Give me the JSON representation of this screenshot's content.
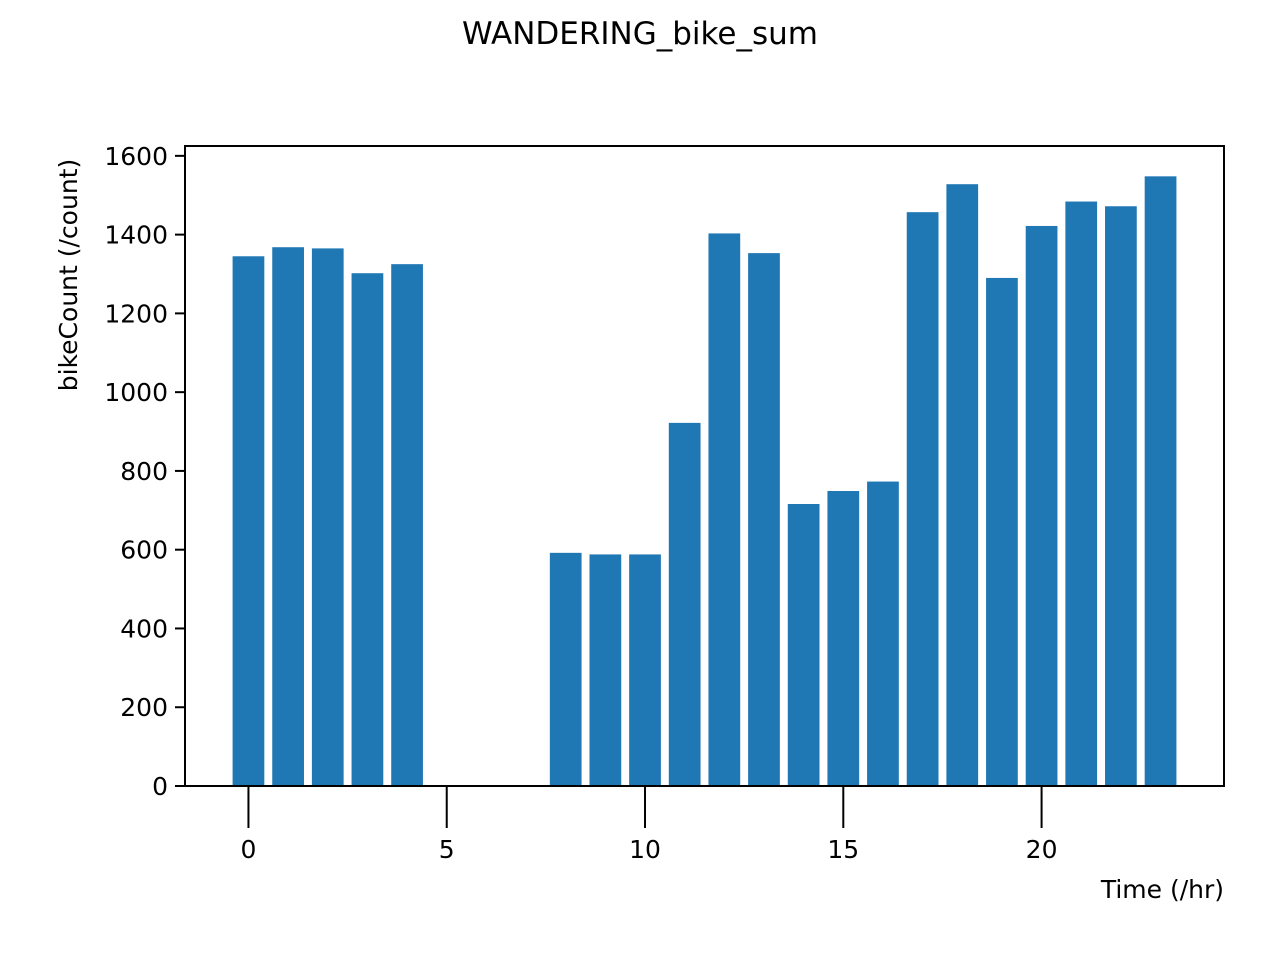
{
  "chart_data": {
    "type": "bar",
    "title": "WANDERING_bike_sum",
    "xlabel": "Time (/hr)",
    "ylabel": "bikeCount (/count)",
    "x": [
      0,
      1,
      2,
      3,
      4,
      8,
      9,
      10,
      11,
      12,
      13,
      14,
      15,
      16,
      17,
      18,
      19,
      20,
      21,
      22,
      23
    ],
    "values": [
      1345,
      1368,
      1365,
      1302,
      1325,
      592,
      588,
      588,
      922,
      1403,
      1353,
      716,
      749,
      773,
      1457,
      1528,
      1290,
      1422,
      1484,
      1472,
      1548
    ],
    "xlim": [
      -1.6,
      24.6
    ],
    "ylim": [
      0,
      1625
    ],
    "xticks": [
      0,
      5,
      10,
      15,
      20
    ],
    "yticks": [
      0,
      200,
      400,
      600,
      800,
      1000,
      1200,
      1400,
      1600
    ],
    "bar_width": 0.8,
    "bar_color": "#1f77b4",
    "grid": false,
    "legend": "none"
  }
}
